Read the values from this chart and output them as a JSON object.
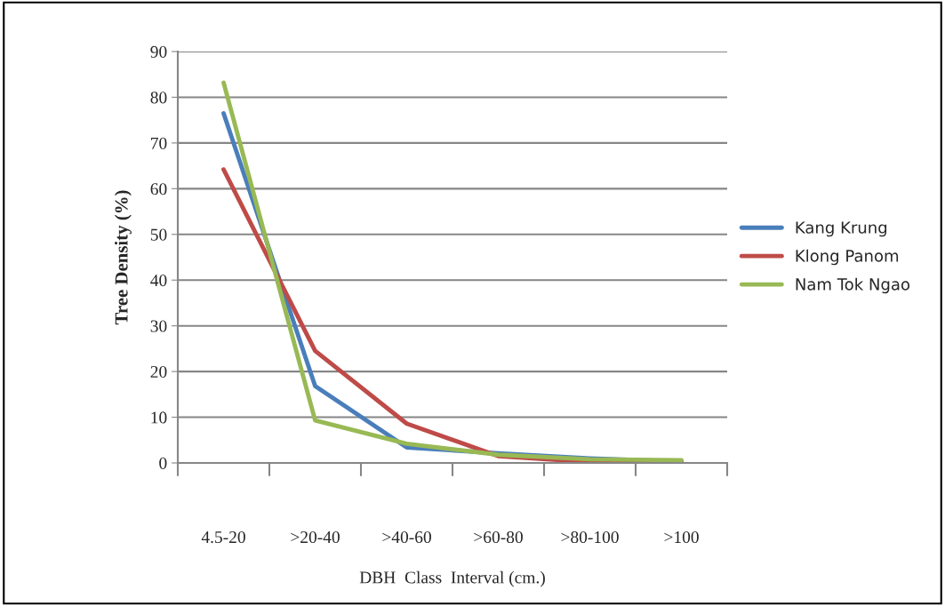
{
  "chart_data": {
    "type": "line",
    "xlabel": "DBH  Class  Interval (cm.)",
    "ylabel": "Tree Density (%)",
    "categories": [
      "4.5-20",
      ">20-40",
      ">40-60",
      ">60-80",
      ">80-100",
      ">100"
    ],
    "series": [
      {
        "name": "Kang Krung",
        "color": "#4a7ebb",
        "values": [
          76.5,
          16.8,
          3.4,
          2.1,
          1.0,
          0.3
        ]
      },
      {
        "name": "Klong Panom",
        "color": "#be4b48",
        "values": [
          64.2,
          24.5,
          8.6,
          1.5,
          0.2,
          0.4
        ]
      },
      {
        "name": "Nam Tok Ngao",
        "color": "#98b954",
        "values": [
          83.2,
          9.3,
          4.2,
          1.8,
          0.8,
          0.6
        ]
      }
    ],
    "ylim": [
      0,
      90
    ],
    "yticks": [
      0,
      10,
      20,
      30,
      40,
      50,
      60,
      70,
      80,
      90
    ],
    "grid": "y",
    "legend": "right",
    "marker": "none",
    "line_style": "solid"
  }
}
